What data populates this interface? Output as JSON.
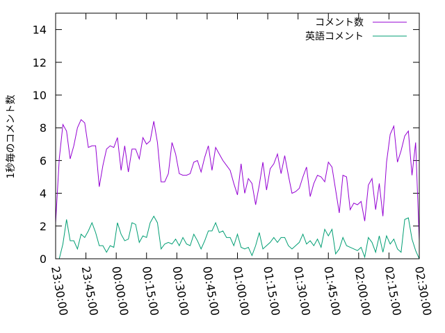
{
  "chart_data": {
    "type": "line",
    "ylabel": "1秒毎のコメント数",
    "xlabel": "",
    "ylim": [
      0,
      15
    ],
    "yticks": [
      0,
      2,
      4,
      6,
      8,
      10,
      12,
      14
    ],
    "xlim_minutes_from_first_tick": [
      0,
      180
    ],
    "xtick_labels": [
      "23:30:00",
      "23:45:00",
      "00:00:00",
      "00:15:00",
      "00:30:00",
      "00:45:00",
      "01:00:00",
      "01:15:00",
      "01:30:00",
      "01:45:00",
      "02:00:00",
      "02:15:00",
      "02:30:00"
    ],
    "legend_position": "top-right",
    "grid": false,
    "series": [
      {
        "name": "コメント数",
        "color": "#9400d3",
        "values": [
          2.2,
          6.1,
          8.2,
          7.8,
          6.1,
          6.9,
          8.0,
          8.5,
          8.3,
          6.8,
          6.9,
          6.9,
          4.4,
          5.7,
          6.7,
          6.9,
          6.8,
          7.4,
          5.4,
          6.9,
          5.3,
          6.7,
          6.7,
          6.1,
          7.4,
          7.0,
          7.2,
          8.4,
          7.1,
          4.7,
          4.7,
          5.2,
          7.1,
          6.4,
          5.2,
          5.1,
          5.1,
          5.2,
          5.9,
          6.0,
          5.3,
          6.2,
          6.9,
          5.4,
          6.8,
          6.4,
          6.0,
          5.7,
          5.4,
          4.6,
          3.9,
          5.8,
          4.0,
          4.9,
          4.6,
          3.3,
          4.5,
          5.9,
          4.2,
          5.5,
          5.8,
          6.4,
          5.2,
          6.3,
          5.1,
          4.0,
          4.1,
          4.3,
          5.0,
          5.6,
          3.8,
          4.6,
          5.1,
          5.0,
          4.7,
          5.9,
          5.6,
          4.2,
          2.8,
          5.1,
          5.0,
          3.0,
          3.4,
          3.3,
          3.5,
          2.3,
          4.5,
          4.9,
          3.0,
          4.6,
          2.6,
          5.9,
          7.6,
          8.1,
          5.9,
          6.6,
          7.5,
          7.8,
          5.1,
          7.1,
          1.1
        ]
      },
      {
        "name": "英語コメント",
        "color": "#009e73",
        "values": [
          0.0,
          0.0,
          0.9,
          2.4,
          1.1,
          1.1,
          0.6,
          1.5,
          1.3,
          1.7,
          2.2,
          1.6,
          0.8,
          0.8,
          0.4,
          0.8,
          0.7,
          2.2,
          1.5,
          1.1,
          1.2,
          2.2,
          2.1,
          1.0,
          1.4,
          1.3,
          2.2,
          2.6,
          2.2,
          0.6,
          0.9,
          1.0,
          0.9,
          1.2,
          0.8,
          1.3,
          0.9,
          0.8,
          1.5,
          1.1,
          0.6,
          1.1,
          1.7,
          1.7,
          2.2,
          1.6,
          1.7,
          1.3,
          1.3,
          0.8,
          1.5,
          0.7,
          0.6,
          0.7,
          0.2,
          0.8,
          1.6,
          0.6,
          0.8,
          1.0,
          1.3,
          1.0,
          1.3,
          1.3,
          0.8,
          0.6,
          0.8,
          1.0,
          1.5,
          0.9,
          1.1,
          0.8,
          1.2,
          0.7,
          1.8,
          1.4,
          1.8,
          0.3,
          0.6,
          1.3,
          0.8,
          0.7,
          0.6,
          0.5,
          0.7,
          0.1,
          1.3,
          1.0,
          0.4,
          1.4,
          0.4,
          1.4,
          0.9,
          1.2,
          0.6,
          0.4,
          2.4,
          2.5,
          1.2,
          0.5,
          0.0
        ]
      }
    ]
  }
}
